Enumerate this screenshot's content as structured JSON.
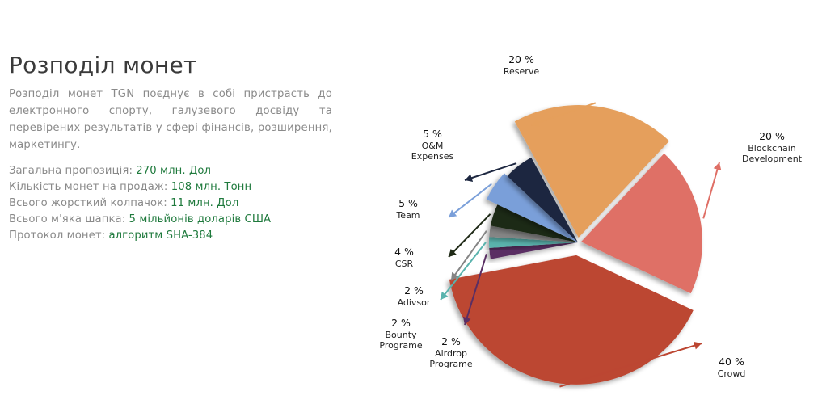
{
  "section": {
    "title": "Розподіл монет",
    "description": "Розподіл монет TGN поєднує в собі пристрасть до електронного спорту, галузевого досвіду та перевірених результатів у сфері фінансів, розширення, маркетингу."
  },
  "facts": [
    {
      "label": "Загальна пропозиція: ",
      "value": "270 млн. Дол"
    },
    {
      "label": "Кількість монет на продаж: ",
      "value": "108 млн. Тонн"
    },
    {
      "label": "Всього жорсткий колпачок: ",
      "value": "11 млн. Дол"
    },
    {
      "label": "Всього м'яка шапка: ",
      "value": "5 мільйонів доларів США"
    },
    {
      "label": "Протокол монет: ",
      "value": "алгоритм SHA-384"
    }
  ],
  "chart_data": {
    "type": "pie",
    "title": "",
    "unit": "%",
    "slices": [
      {
        "name": "Reserve",
        "value": 20,
        "label": "20 %",
        "lines": [
          "Reserve"
        ],
        "color": "#e59f5b"
      },
      {
        "name": "Blockchain Development",
        "value": 20,
        "label": "20 %",
        "lines": [
          "Blockchain",
          "Development"
        ],
        "color": "#df6f66"
      },
      {
        "name": "Crowd",
        "value": 40,
        "label": "40 %",
        "lines": [
          "Crowd"
        ],
        "color": "#bc4632"
      },
      {
        "name": "Airdrop Programe",
        "value": 2,
        "label": "2 %",
        "lines": [
          "Airdrop",
          "Programe"
        ],
        "color": "#5a2e63"
      },
      {
        "name": "Bounty Programe",
        "value": 2,
        "label": "2 %",
        "lines": [
          "Bounty",
          "Programe"
        ],
        "color": "#5ab3ad"
      },
      {
        "name": "Adivsor",
        "value": 2,
        "label": "2 %",
        "lines": [
          "Adivsor"
        ],
        "color": "#858585"
      },
      {
        "name": "CSR",
        "value": 4,
        "label": "4 %",
        "lines": [
          "CSR"
        ],
        "color": "#1f2a17"
      },
      {
        "name": "Team",
        "value": 5,
        "label": "5 %",
        "lines": [
          "Team"
        ],
        "color": "#7a9fd9"
      },
      {
        "name": "O&M Expenses",
        "value": 5,
        "label": "5 %",
        "lines": [
          "O&M",
          "Expenses"
        ],
        "color": "#1d2740"
      }
    ],
    "legend": "callouts"
  }
}
